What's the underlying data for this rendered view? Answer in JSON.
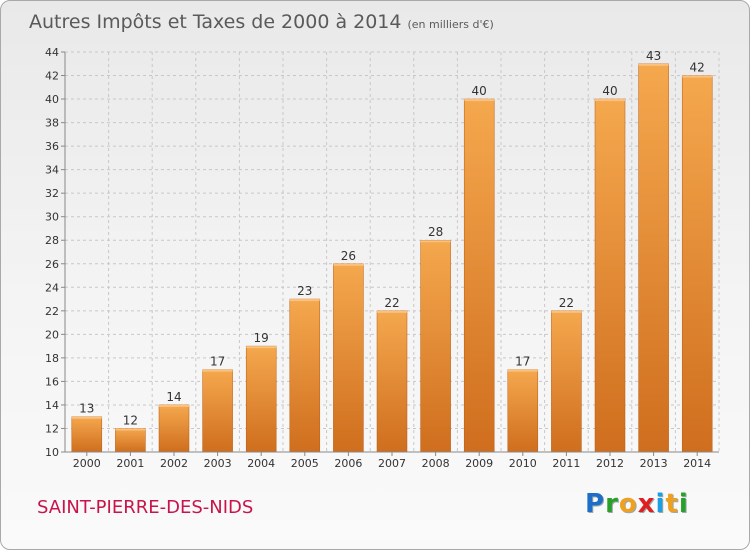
{
  "header": {
    "title": "Autres Impôts et Taxes de 2000 à 2014",
    "unit": "(en milliers d'€)"
  },
  "commune": "SAINT-PIERRE-DES-NIDS",
  "logo": {
    "text": "Proxiti",
    "letters": [
      {
        "ch": "P",
        "color": "#1e6ec8"
      },
      {
        "ch": "r",
        "color": "#2aa02a"
      },
      {
        "ch": "o",
        "color": "#f0a020"
      },
      {
        "ch": "x",
        "color": "#e02020"
      },
      {
        "ch": "i",
        "color": "#1e9ee0"
      },
      {
        "ch": "t",
        "color": "#f0a020"
      },
      {
        "ch": "i",
        "color": "#2aa02a"
      }
    ]
  },
  "colors": {
    "bar_light": "#f5a84e",
    "bar_dark": "#cf6e1e",
    "grid": "#c8c8c8",
    "axis_text": "#333333",
    "title": "#5a5a5a",
    "commune": "#c8144a"
  },
  "chart_data": {
    "type": "bar",
    "title": "Autres Impôts et Taxes de 2000 à 2014",
    "subtitle": "(en milliers d'€)",
    "categories": [
      "2000",
      "2001",
      "2002",
      "2003",
      "2004",
      "2005",
      "2006",
      "2007",
      "2008",
      "2009",
      "2010",
      "2011",
      "2012",
      "2013",
      "2014"
    ],
    "values": [
      13,
      12,
      14,
      17,
      19,
      23,
      26,
      22,
      28,
      40,
      17,
      22,
      40,
      43,
      42
    ],
    "ylim": [
      10,
      44
    ],
    "yticks": [
      10,
      12,
      14,
      16,
      18,
      20,
      22,
      24,
      26,
      28,
      30,
      32,
      34,
      36,
      38,
      40,
      42,
      44
    ],
    "grid": true,
    "data_labels": true
  }
}
